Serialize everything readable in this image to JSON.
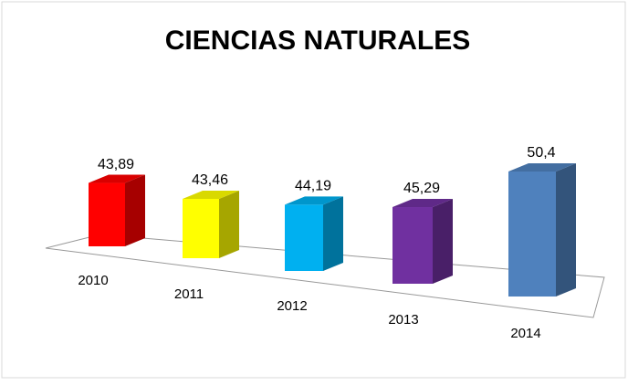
{
  "chart_data": {
    "type": "bar3d",
    "title": "CIENCIAS NATURALES",
    "categories": [
      "2010",
      "2011",
      "2012",
      "2013",
      "2014"
    ],
    "values": [
      43.89,
      43.46,
      44.19,
      45.29,
      50.4
    ],
    "value_labels": [
      "43,89",
      "43,46",
      "44,19",
      "45,29",
      "50,4"
    ],
    "colors": [
      "#ff0000",
      "#ffff00",
      "#00b0f0",
      "#7030a0",
      "#4f81bd"
    ]
  }
}
